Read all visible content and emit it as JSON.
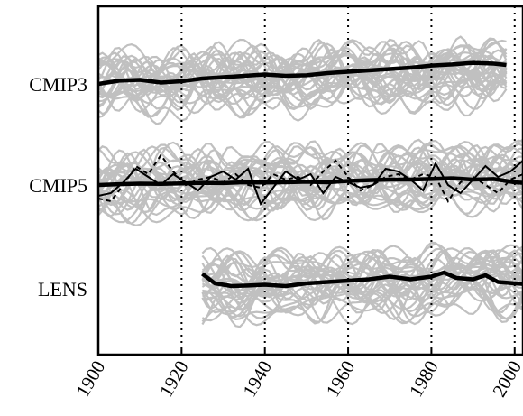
{
  "chart_data": {
    "type": "line",
    "title": "",
    "xlabel": "",
    "ylabel": "",
    "xlim": [
      1900,
      2002
    ],
    "x_ticks": [
      1900,
      1920,
      1940,
      1960,
      1980,
      2000
    ],
    "x_tick_labels": [
      "1900",
      "1920",
      "1940",
      "1960",
      "1980",
      "2000"
    ],
    "vertical_gridlines_dotted": [
      1920,
      1940,
      1960,
      1980,
      2000
    ],
    "grid": false,
    "legend": "none",
    "colors": {
      "ensemble": "#c0c0c0",
      "mean": "#000000",
      "axis": "#000000"
    },
    "panels": [
      {
        "label": "CMIP3",
        "x_range": [
          1900,
          1998
        ],
        "ensemble_members": 30,
        "mean": {
          "x": [
            1900,
            1905,
            1910,
            1915,
            1920,
            1925,
            1930,
            1935,
            1940,
            1945,
            1950,
            1955,
            1960,
            1965,
            1970,
            1975,
            1980,
            1985,
            1990,
            1995,
            1998
          ],
          "y": [
            0.0,
            0.12,
            0.15,
            0.05,
            0.1,
            0.2,
            0.25,
            0.3,
            0.35,
            0.3,
            0.32,
            0.4,
            0.45,
            0.5,
            0.55,
            0.6,
            0.68,
            0.72,
            0.78,
            0.75,
            0.7
          ]
        }
      },
      {
        "label": "CMIP5",
        "x_range": [
          1900,
          2002
        ],
        "ensemble_members": 30,
        "mean": {
          "x": [
            1900,
            1905,
            1910,
            1915,
            1920,
            1925,
            1930,
            1935,
            1940,
            1945,
            1950,
            1955,
            1960,
            1965,
            1970,
            1975,
            1980,
            1985,
            1990,
            1995,
            2000,
            2002
          ],
          "y": [
            0.0,
            0.03,
            0.05,
            0.04,
            0.06,
            0.08,
            0.07,
            0.1,
            0.09,
            0.1,
            0.12,
            0.1,
            0.15,
            0.18,
            0.2,
            0.2,
            0.22,
            0.25,
            0.2,
            0.22,
            0.1,
            0.08
          ]
        },
        "observed_solid": {
          "x": [
            1900,
            1903,
            1906,
            1909,
            1912,
            1915,
            1918,
            1921,
            1924,
            1927,
            1930,
            1933,
            1936,
            1939,
            1942,
            1945,
            1948,
            1951,
            1954,
            1957,
            1960,
            1963,
            1966,
            1969,
            1972,
            1975,
            1978,
            1981,
            1984,
            1987,
            1990,
            1993,
            1996,
            1999,
            2002
          ],
          "y": [
            -0.4,
            -0.3,
            0.1,
            0.6,
            0.3,
            0.0,
            0.4,
            0.1,
            -0.2,
            0.3,
            0.5,
            0.2,
            0.6,
            -0.7,
            -0.1,
            0.5,
            0.2,
            0.4,
            -0.3,
            0.3,
            0.1,
            -0.1,
            0.0,
            0.6,
            0.5,
            0.2,
            -0.2,
            0.8,
            0.0,
            -0.3,
            0.2,
            0.7,
            0.3,
            0.5,
            0.9
          ]
        },
        "observed_dashed": {
          "x": [
            1900,
            1903,
            1906,
            1909,
            1912,
            1915,
            1918,
            1921,
            1924,
            1927,
            1930,
            1933,
            1936,
            1939,
            1942,
            1945,
            1948,
            1951,
            1954,
            1957,
            1960,
            1963,
            1966,
            1969,
            1972,
            1975,
            1978,
            1981,
            1984,
            1987,
            1990,
            1993,
            1996,
            1999,
            2002
          ],
          "y": [
            -0.5,
            -0.6,
            0.0,
            0.7,
            0.4,
            1.1,
            0.5,
            0.0,
            0.2,
            0.3,
            0.1,
            0.4,
            0.0,
            -0.1,
            0.4,
            0.2,
            0.3,
            0.0,
            0.5,
            0.9,
            0.3,
            -0.2,
            0.0,
            0.3,
            0.4,
            0.2,
            0.4,
            0.3,
            -0.6,
            0.1,
            0.3,
            0.0,
            -0.3,
            0.2,
            0.4
          ]
        }
      },
      {
        "label": "LENS",
        "x_range": [
          1925,
          2002
        ],
        "ensemble_members": 30,
        "mean": {
          "x": [
            1925,
            1928,
            1932,
            1936,
            1940,
            1945,
            1950,
            1955,
            1960,
            1965,
            1970,
            1975,
            1980,
            1983,
            1986,
            1990,
            1993,
            1996,
            2000,
            2002
          ],
          "y": [
            0.55,
            0.2,
            0.1,
            0.12,
            0.15,
            0.1,
            0.2,
            0.25,
            0.3,
            0.35,
            0.45,
            0.35,
            0.45,
            0.6,
            0.4,
            0.35,
            0.5,
            0.25,
            0.2,
            0.18
          ]
        }
      }
    ]
  }
}
